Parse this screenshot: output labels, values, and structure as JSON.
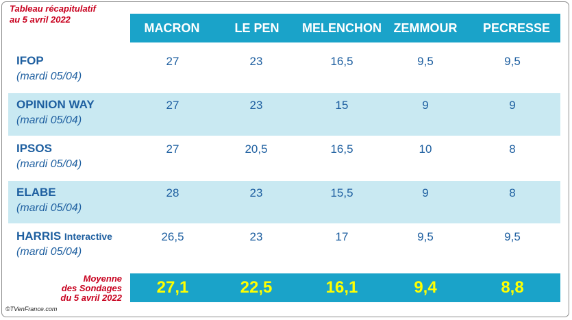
{
  "caption": {
    "line1": "Tableau récapitulatif",
    "line2": "au 5 avril 2022"
  },
  "columns": [
    "MACRON",
    "LE PEN",
    "MELENCHON",
    "ZEMMOUR",
    "PECRESSE"
  ],
  "rows": [
    {
      "name": "IFOP",
      "suffix": "",
      "date": "(mardi 05/04)",
      "values": [
        "27",
        "23",
        "16,5",
        "9,5",
        "9,5"
      ]
    },
    {
      "name": "OPINION WAY",
      "suffix": "",
      "date": "(mardi 05/04)",
      "values": [
        "27",
        "23",
        "15",
        "9",
        "9"
      ]
    },
    {
      "name": "IPSOS",
      "suffix": "",
      "date": "(mardi 05/04)",
      "values": [
        "27",
        "20,5",
        "16,5",
        "10",
        "8"
      ]
    },
    {
      "name": "ELABE",
      "suffix": "",
      "date": "(mardi 05/04)",
      "values": [
        "28",
        "23",
        "15,5",
        "9",
        "8"
      ]
    },
    {
      "name": "HARRIS",
      "suffix": "Interactive",
      "date": "(mardi 05/04)",
      "values": [
        "26,5",
        "23",
        "17",
        "9,5",
        "9,5"
      ]
    }
  ],
  "average": {
    "label1": "Moyenne",
    "label2": "des Sondages",
    "label3": "du 5 avril 2022",
    "values": [
      "27,1",
      "22,5",
      "16,1",
      "9,4",
      "8,8"
    ]
  },
  "copyright": "©TVenFrance.com",
  "colors": {
    "header": "#1aa3c9",
    "shaded_row": "#c9e9f2",
    "text_blue": "#1e5fa0",
    "caption_red": "#c8001e",
    "average_yellow": "#ffff00"
  }
}
